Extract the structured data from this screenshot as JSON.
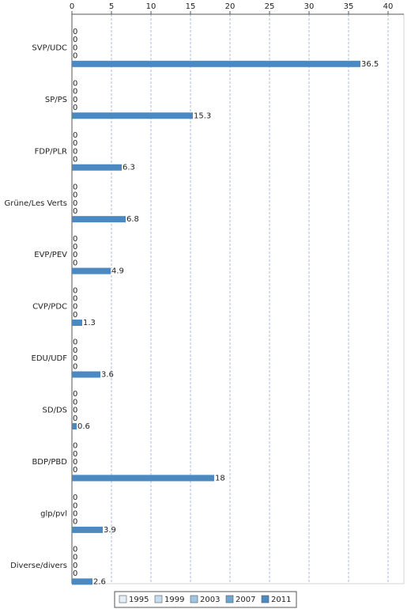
{
  "chart_data": {
    "type": "bar",
    "orientation": "horizontal",
    "categories": [
      "SVP/UDC",
      "SP/PS",
      "FDP/PLR",
      "Grüne/Les Verts",
      "EVP/PEV",
      "CVP/PDC",
      "EDU/UDF",
      "SD/DS",
      "BDP/PBD",
      "glp/pvl",
      "Diverse/divers"
    ],
    "series": [
      {
        "name": "1995",
        "color": "#e4eef7",
        "values": [
          0,
          0,
          0,
          0,
          0,
          0,
          0,
          0,
          0,
          0,
          0
        ]
      },
      {
        "name": "1999",
        "color": "#c7ddef",
        "values": [
          0,
          0,
          0,
          0,
          0,
          0,
          0,
          0,
          0,
          0,
          0
        ]
      },
      {
        "name": "2003",
        "color": "#9ec5e3",
        "values": [
          0,
          0,
          0,
          0,
          0,
          0,
          0,
          0,
          0,
          0,
          0
        ]
      },
      {
        "name": "2007",
        "color": "#6ea6d3",
        "values": [
          0,
          0,
          0,
          0,
          0,
          0,
          0,
          0,
          0,
          0,
          0
        ]
      },
      {
        "name": "2011",
        "color": "#4a89c2",
        "values": [
          36.5,
          15.3,
          6.3,
          6.8,
          4.9,
          1.3,
          3.6,
          0.6,
          18,
          3.9,
          2.6
        ]
      }
    ],
    "xlim": [
      0,
      42
    ],
    "xticks": [
      0,
      5,
      10,
      15,
      20,
      25,
      30,
      35,
      40
    ],
    "grid": true,
    "legend": "bottom"
  }
}
